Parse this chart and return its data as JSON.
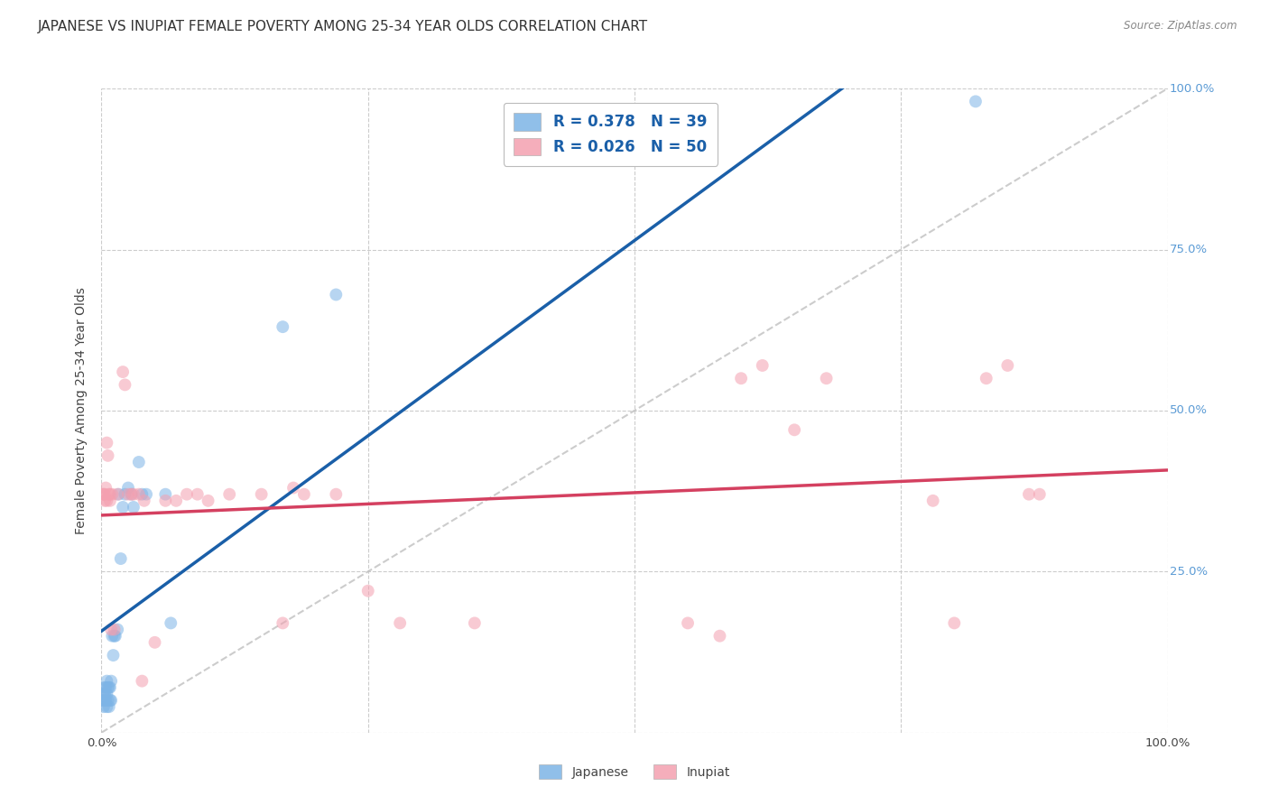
{
  "title": "JAPANESE VS INUPIAT FEMALE POVERTY AMONG 25-34 YEAR OLDS CORRELATION CHART",
  "source": "Source: ZipAtlas.com",
  "ylabel": "Female Poverty Among 25-34 Year Olds",
  "xlim": [
    0,
    1.0
  ],
  "ylim": [
    0,
    1.0
  ],
  "japanese_color": "#7db4e6",
  "inupiat_color": "#f4a0b0",
  "japanese_trend_color": "#1a5fa8",
  "inupiat_trend_color": "#d44060",
  "diagonal_color": "#c0c0c0",
  "background_color": "#ffffff",
  "japanese_x": [
    0.001,
    0.002,
    0.002,
    0.003,
    0.003,
    0.003,
    0.004,
    0.004,
    0.005,
    0.005,
    0.005,
    0.006,
    0.006,
    0.007,
    0.007,
    0.008,
    0.008,
    0.009,
    0.009,
    0.01,
    0.011,
    0.012,
    0.013,
    0.015,
    0.016,
    0.018,
    0.02,
    0.022,
    0.025,
    0.028,
    0.03,
    0.035,
    0.038,
    0.042,
    0.06,
    0.065,
    0.17,
    0.22,
    0.82
  ],
  "japanese_y": [
    0.05,
    0.04,
    0.06,
    0.05,
    0.06,
    0.07,
    0.05,
    0.07,
    0.04,
    0.06,
    0.08,
    0.05,
    0.07,
    0.04,
    0.07,
    0.05,
    0.07,
    0.05,
    0.08,
    0.15,
    0.12,
    0.15,
    0.15,
    0.16,
    0.37,
    0.27,
    0.35,
    0.37,
    0.38,
    0.37,
    0.35,
    0.42,
    0.37,
    0.37,
    0.37,
    0.17,
    0.63,
    0.68,
    0.98
  ],
  "inupiat_x": [
    0.001,
    0.002,
    0.003,
    0.003,
    0.004,
    0.005,
    0.005,
    0.006,
    0.007,
    0.008,
    0.008,
    0.009,
    0.01,
    0.012,
    0.015,
    0.02,
    0.022,
    0.025,
    0.028,
    0.03,
    0.035,
    0.038,
    0.04,
    0.05,
    0.06,
    0.07,
    0.08,
    0.09,
    0.1,
    0.12,
    0.15,
    0.17,
    0.18,
    0.19,
    0.22,
    0.25,
    0.28,
    0.35,
    0.55,
    0.58,
    0.6,
    0.62,
    0.65,
    0.68,
    0.78,
    0.8,
    0.83,
    0.85,
    0.87,
    0.88
  ],
  "inupiat_y": [
    0.37,
    0.37,
    0.37,
    0.36,
    0.38,
    0.36,
    0.45,
    0.43,
    0.37,
    0.36,
    0.37,
    0.16,
    0.37,
    0.16,
    0.37,
    0.56,
    0.54,
    0.37,
    0.37,
    0.37,
    0.37,
    0.08,
    0.36,
    0.14,
    0.36,
    0.36,
    0.37,
    0.37,
    0.36,
    0.37,
    0.37,
    0.17,
    0.38,
    0.37,
    0.37,
    0.22,
    0.17,
    0.17,
    0.17,
    0.15,
    0.55,
    0.57,
    0.47,
    0.55,
    0.36,
    0.17,
    0.55,
    0.57,
    0.37,
    0.37
  ],
  "marker_size": 100,
  "marker_alpha": 0.55,
  "title_fontsize": 11,
  "label_fontsize": 10,
  "tick_fontsize": 9.5,
  "legend_fontsize": 12
}
